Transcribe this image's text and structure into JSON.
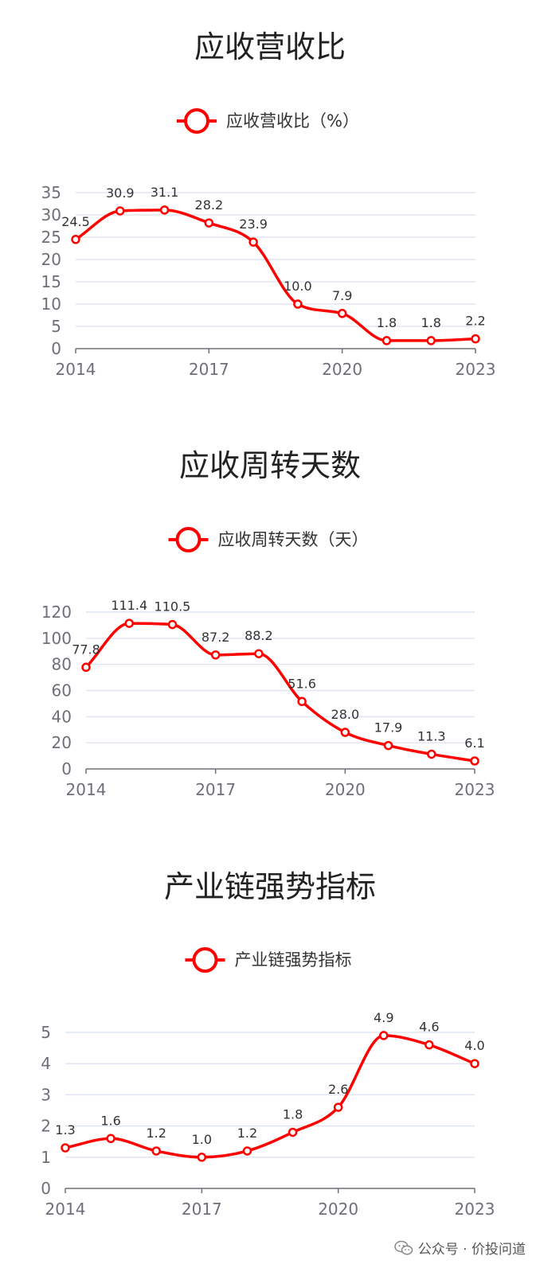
{
  "chart_data": [
    {
      "type": "line",
      "title": "应收营收比",
      "x": [
        2014,
        2015,
        2016,
        2017,
        2018,
        2019,
        2020,
        2021,
        2022,
        2023
      ],
      "x_tick_labels": [
        "2014",
        "2017",
        "2020",
        "2023"
      ],
      "series": [
        {
          "name": "应收营收比（%）",
          "values": [
            24.5,
            30.9,
            31.1,
            28.2,
            23.9,
            10.0,
            7.9,
            1.8,
            1.8,
            2.2
          ],
          "labels": [
            "24.5",
            "30.9",
            "31.1",
            "28.2",
            "23.9",
            "10.0",
            "7.9",
            "1.8",
            "1.8",
            "2.2"
          ]
        }
      ],
      "ylim": [
        0,
        35
      ],
      "y_ticks": [
        0,
        5,
        10,
        15,
        20,
        25,
        30,
        35
      ],
      "grid": true,
      "legend_position": "top-center",
      "color": "#ff0000"
    },
    {
      "type": "line",
      "title": "应收周转天数",
      "x": [
        2014,
        2015,
        2016,
        2017,
        2018,
        2019,
        2020,
        2021,
        2022,
        2023
      ],
      "x_tick_labels": [
        "2014",
        "2017",
        "2020",
        "2023"
      ],
      "series": [
        {
          "name": "应收周转天数（天）",
          "values": [
            77.8,
            111.4,
            110.5,
            87.2,
            88.2,
            51.6,
            28.0,
            17.9,
            11.3,
            6.1
          ],
          "labels": [
            "77.8",
            "111.4",
            "110.5",
            "87.2",
            "88.2",
            "51.6",
            "28.0",
            "17.9",
            "11.3",
            "6.1"
          ]
        }
      ],
      "ylim": [
        0,
        120
      ],
      "y_ticks": [
        0,
        20,
        40,
        60,
        80,
        100,
        120
      ],
      "grid": true,
      "legend_position": "top-center",
      "color": "#ff0000"
    },
    {
      "type": "line",
      "title": "产业链强势指标",
      "x": [
        2014,
        2015,
        2016,
        2017,
        2018,
        2019,
        2020,
        2021,
        2022,
        2023
      ],
      "x_tick_labels": [
        "2014",
        "2017",
        "2020",
        "2023"
      ],
      "series": [
        {
          "name": "产业链强势指标",
          "values": [
            1.3,
            1.6,
            1.2,
            1.0,
            1.2,
            1.8,
            2.6,
            4.9,
            4.6,
            4.0
          ],
          "labels": [
            "1.3",
            "1.6",
            "1.2",
            "1.0",
            "1.2",
            "1.8",
            "2.6",
            "4.9",
            "4.6",
            "4.0"
          ]
        }
      ],
      "ylim": [
        0,
        5
      ],
      "y_ticks": [
        0,
        1,
        2,
        3,
        4,
        5
      ],
      "grid": true,
      "legend_position": "top-center",
      "color": "#ff0000"
    }
  ],
  "watermark": {
    "text": "公众号 · 价投问道",
    "icon": "wechat-icon"
  }
}
